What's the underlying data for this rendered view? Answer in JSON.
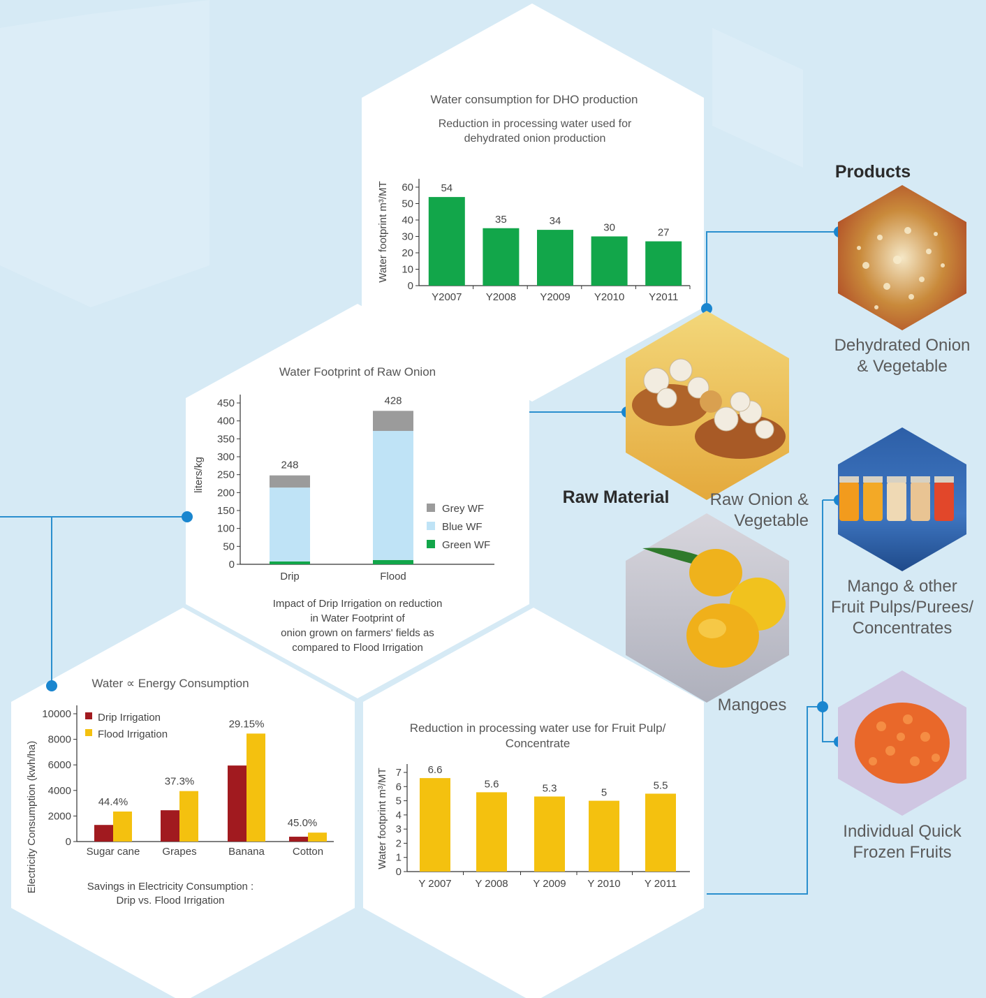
{
  "colors": {
    "background": "#d6eaf5",
    "connector": "#2a8fce",
    "green_bar": "#12a64a",
    "yellow_bar": "#f4c10f",
    "red_bar": "#a11a1f",
    "grey_wf": "#9b9b9b",
    "blue_wf": "#bfe3f6",
    "green_wf": "#12a64a"
  },
  "labels": {
    "products": "Products",
    "raw_material": "Raw Material",
    "dehydrated": [
      "Dehydrated Onion",
      "& Vegetable"
    ],
    "raw_onion": [
      "Raw Onion &",
      "Vegetable"
    ],
    "mangoes": "Mangoes",
    "pulps": [
      "Mango & other",
      "Fruit Pulps/Purees/",
      "Concentrates"
    ],
    "iqf": [
      "Individual Quick",
      "Frozen Fruits"
    ]
  },
  "images": {
    "dehydrated_onion": "dehydrated-onion-photo",
    "raw_onion": "raw-onion-photo",
    "mangoes": "mangoes-photo",
    "fruit_pulp_jars": "fruit-pulp-jars-photo",
    "frozen_fruits": "frozen-fruits-photo"
  },
  "chart_data": [
    {
      "id": "dho",
      "type": "bar",
      "title": "Water consumption for DHO production",
      "subtitle": [
        "Reduction in processing water used for",
        "dehydrated onion production"
      ],
      "ylabel": "Water footprint m³/MT",
      "categories": [
        "Y2007",
        "Y2008",
        "Y2009",
        "Y2010",
        "Y2011"
      ],
      "values": [
        54,
        35,
        34,
        30,
        27
      ],
      "value_labels": [
        "54",
        "35",
        "34",
        "30",
        "27"
      ],
      "ylim": [
        0,
        60
      ],
      "yticks": [
        0,
        10,
        20,
        30,
        40,
        50,
        60
      ],
      "color": "#12a64a",
      "grid": false
    },
    {
      "id": "onion",
      "type": "bar",
      "stacked": true,
      "title": "Water Footprint of Raw Onion",
      "ylabel": "liters/kg",
      "categories": [
        "Drip",
        "Flood"
      ],
      "series": [
        {
          "name": "Green WF",
          "color": "#12a64a",
          "values": [
            8,
            12
          ]
        },
        {
          "name": "Blue WF",
          "color": "#bfe3f6",
          "values": [
            206,
            360
          ]
        },
        {
          "name": "Grey WF",
          "color": "#9b9b9b",
          "values": [
            34,
            56
          ]
        }
      ],
      "totals": [
        "248",
        "428"
      ],
      "legend_position": "right",
      "ylim": [
        0,
        450
      ],
      "yticks": [
        0,
        50,
        100,
        150,
        200,
        250,
        300,
        350,
        400,
        450
      ],
      "caption": [
        "Impact of Drip Irrigation on reduction",
        "in Water Footprint of",
        "onion grown on farmers' fields as",
        "compared to Flood Irrigation"
      ],
      "grid": false
    },
    {
      "id": "energy",
      "type": "bar",
      "title": "Water ∝ Energy Consumption",
      "ylabel": "Electricity Consumption (kwh/ha)",
      "categories": [
        "Sugar cane",
        "Grapes",
        "Banana",
        "Cotton"
      ],
      "series": [
        {
          "name": "Drip Irrigation",
          "color": "#a11a1f",
          "values": [
            1300,
            2450,
            5950,
            380
          ]
        },
        {
          "name": "Flood Irrigation",
          "color": "#f4c10f",
          "values": [
            2350,
            3950,
            8450,
            700
          ]
        }
      ],
      "percent_labels": [
        "44.4%",
        "37.3%",
        "29.15%",
        "45.0%"
      ],
      "legend_position": "top-left",
      "ylim": [
        0,
        10000
      ],
      "yticks": [
        0,
        2000,
        4000,
        6000,
        8000,
        10000
      ],
      "caption": [
        "Savings in Electricity Consumption :",
        "Drip vs. Flood Irrigation"
      ],
      "grid": false
    },
    {
      "id": "pulp",
      "type": "bar",
      "title": [
        "Reduction in processing water use for Fruit Pulp/",
        "Concentrate"
      ],
      "ylabel": "Water footprint m³/MT",
      "categories": [
        "Y 2007",
        "Y 2008",
        "Y 2009",
        "Y 2010",
        "Y 2011"
      ],
      "values": [
        6.6,
        5.6,
        5.3,
        5,
        5.5
      ],
      "value_labels": [
        "6.6",
        "5.6",
        "5.3",
        "5",
        "5.5"
      ],
      "ylim": [
        0,
        7
      ],
      "yticks": [
        0,
        1,
        2,
        3,
        4,
        5,
        6,
        7
      ],
      "color": "#f4c10f",
      "grid": false
    }
  ]
}
